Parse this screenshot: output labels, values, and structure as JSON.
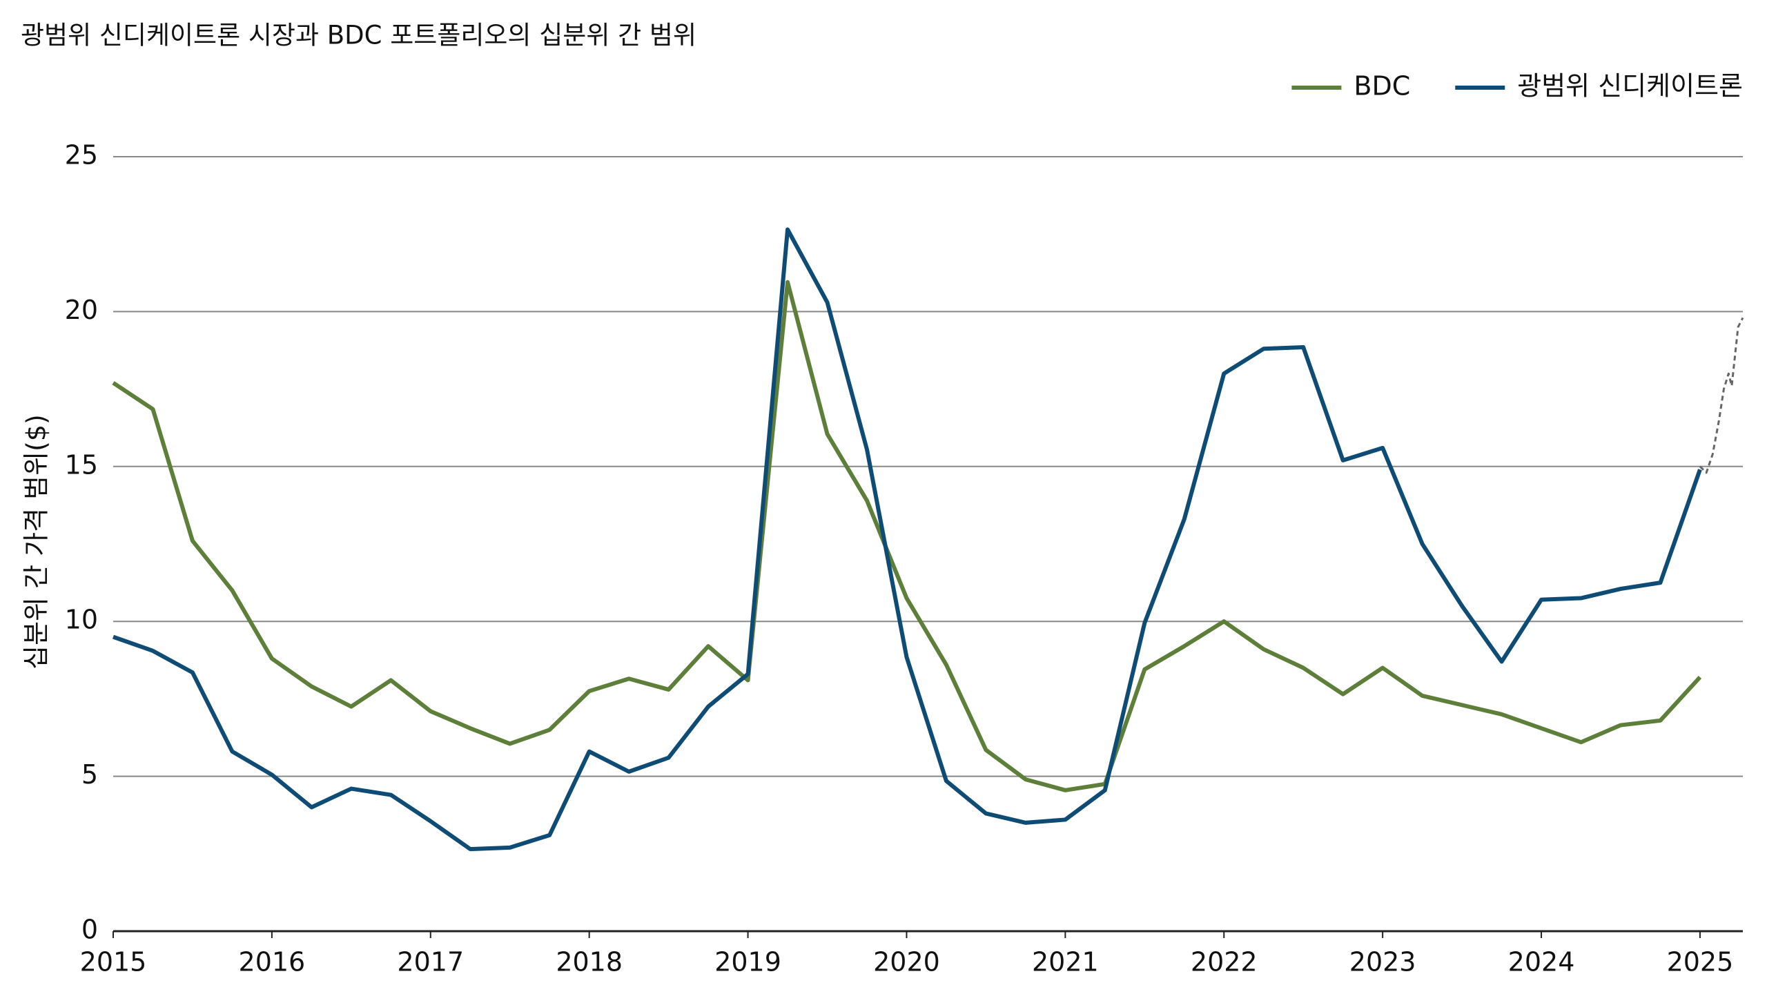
{
  "chart_data": {
    "type": "line",
    "title": "광범위 신디케이트론 시장과 BDC 포트폴리오의 십분위 간 범위",
    "y_label": "십분위 간 가격 범위($)",
    "xlim": [
      2015,
      2025.27
    ],
    "xticks": [
      2015,
      2016,
      2017,
      2018,
      2019,
      2020,
      2021,
      2022,
      2023,
      2024,
      2025
    ],
    "ylim": [
      0,
      25
    ],
    "yticks": [
      0,
      5,
      10,
      15,
      20,
      25
    ],
    "grid": true,
    "legend": "top-right",
    "series": [
      {
        "name": "BDC",
        "color": "#5e7f3a",
        "style": "solid",
        "x": [
          2015,
          2015.25,
          2015.5,
          2015.75,
          2016,
          2016.25,
          2016.5,
          2016.75,
          2017,
          2017.25,
          2017.5,
          2017.75,
          2018,
          2018.25,
          2018.5,
          2018.75,
          2019,
          2019.25,
          2019.5,
          2019.75,
          2020,
          2020.25,
          2020.5,
          2020.75,
          2021,
          2021.25,
          2021.5,
          2021.75,
          2022,
          2022.25,
          2022.5,
          2022.75,
          2023,
          2023.25,
          2023.5,
          2023.75,
          2024,
          2024.25,
          2024.5,
          2024.75,
          2025
        ],
        "values": [
          17.7,
          16.85,
          12.6,
          11.0,
          8.8,
          7.9,
          7.25,
          8.1,
          7.1,
          6.55,
          6.05,
          6.5,
          7.75,
          8.15,
          7.8,
          9.2,
          8.1,
          20.95,
          16.05,
          13.9,
          10.75,
          8.6,
          5.85,
          4.9,
          4.55,
          4.75,
          8.45,
          9.2,
          10.0,
          9.1,
          8.5,
          7.65,
          8.5,
          7.6,
          7.3,
          7.0,
          6.55,
          6.1,
          6.65,
          6.8,
          8.2
        ]
      },
      {
        "name": "광범위 신디케이트론",
        "color": "#0f4c75",
        "style": "solid",
        "x": [
          2015,
          2015.25,
          2015.5,
          2015.75,
          2016,
          2016.25,
          2016.5,
          2016.75,
          2017,
          2017.25,
          2017.5,
          2017.75,
          2018,
          2018.25,
          2018.5,
          2018.75,
          2019,
          2019.25,
          2019.5,
          2019.75,
          2020,
          2020.25,
          2020.5,
          2020.75,
          2021,
          2021.25,
          2021.5,
          2021.75,
          2022,
          2022.25,
          2022.5,
          2022.75,
          2023,
          2023.25,
          2023.5,
          2023.75,
          2024,
          2024.25,
          2024.5,
          2024.75,
          2025
        ],
        "values": [
          9.5,
          9.05,
          8.35,
          5.8,
          5.05,
          4.0,
          4.6,
          4.4,
          3.55,
          2.65,
          2.7,
          3.1,
          5.8,
          5.15,
          5.6,
          7.25,
          8.3,
          22.65,
          20.3,
          15.55,
          8.85,
          4.85,
          3.8,
          3.5,
          3.6,
          4.55,
          9.95,
          13.3,
          18.0,
          18.8,
          18.85,
          15.2,
          15.6,
          12.5,
          10.5,
          8.7,
          10.7,
          10.75,
          11.05,
          11.25,
          14.9
        ]
      },
      {
        "color": "#666666",
        "style": "dashed",
        "x": [
          2025,
          2025.04,
          2025.08,
          2025.12,
          2025.15,
          2025.18,
          2025.2,
          2025.24,
          2025.27
        ],
        "values": [
          15.0,
          14.8,
          15.4,
          16.5,
          17.5,
          18.0,
          17.6,
          19.5,
          19.8
        ]
      }
    ]
  }
}
